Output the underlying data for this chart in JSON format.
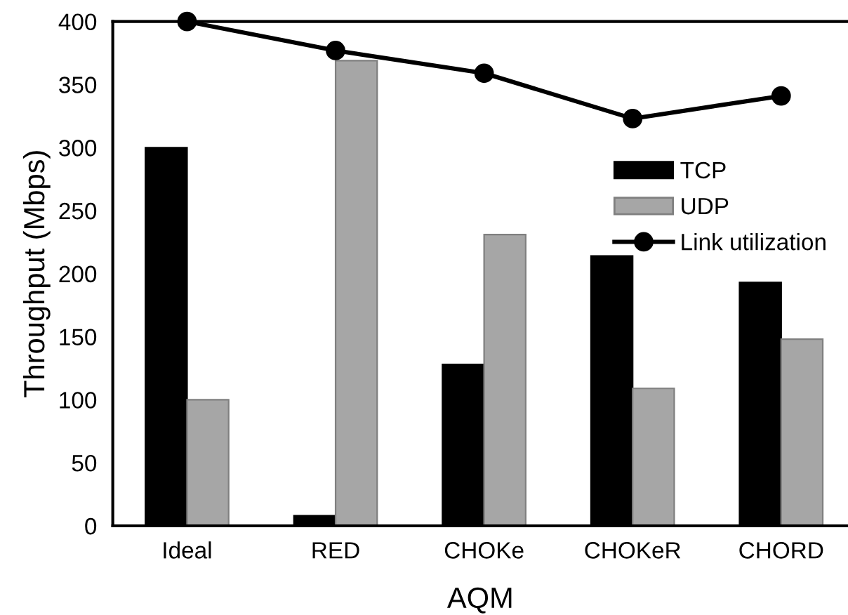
{
  "chart_data": {
    "type": "bar",
    "xlabel": "AQM",
    "ylabel": "Throughput (Mbps)",
    "categories": [
      "Ideal",
      "RED",
      "CHOKe",
      "CHOKeR",
      "CHORD"
    ],
    "series": [
      {
        "name": "TCP",
        "color": "#000000",
        "values": [
          300,
          8,
          128,
          214,
          193
        ]
      },
      {
        "name": "UDP",
        "color": "#a6a6a6",
        "values": [
          100,
          369,
          231,
          109,
          148
        ]
      },
      {
        "name": "Link utilization",
        "type": "line",
        "color": "#000000",
        "marker": "circle",
        "values": [
          400,
          377,
          359,
          323,
          341
        ]
      }
    ],
    "ylim": [
      0,
      400
    ],
    "yticks": [
      0,
      50,
      100,
      150,
      200,
      250,
      300,
      350,
      400
    ],
    "grid": false,
    "legend": "right"
  }
}
